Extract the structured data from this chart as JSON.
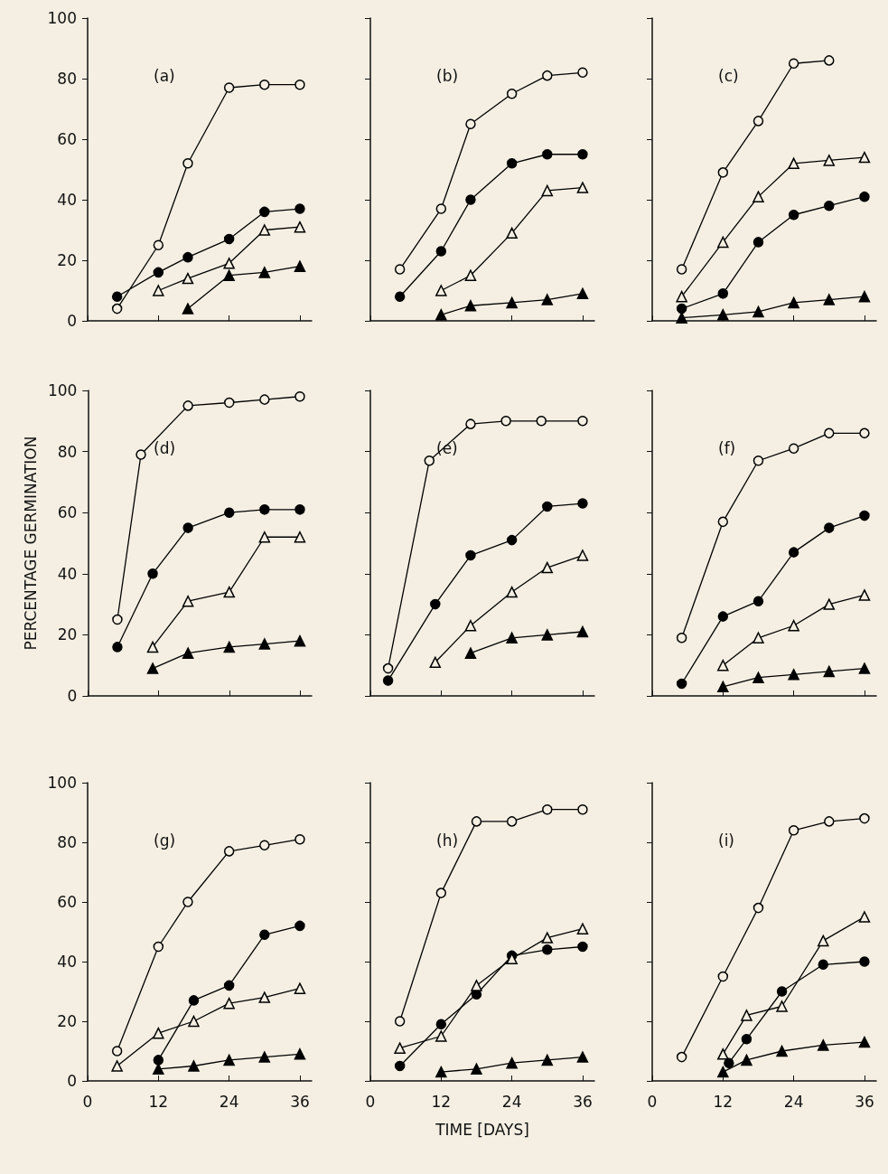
{
  "chart_data": [
    {
      "type": "line",
      "title": "(a)",
      "xlim": [
        0,
        38
      ],
      "xticks": [
        0,
        12,
        24,
        36
      ],
      "ylim": [
        0,
        100
      ],
      "yticks": [
        0,
        20,
        40,
        60,
        80,
        100
      ],
      "tick_labels": "y",
      "line_style": "solid",
      "series": [
        {
          "color": "#000000",
          "marker": "circle-open",
          "x": [
            5,
            12,
            17,
            24,
            30,
            36
          ],
          "values": [
            4,
            25,
            52,
            77,
            78,
            78
          ]
        },
        {
          "color": "#000000",
          "marker": "circle",
          "x": [
            5,
            12,
            17,
            24,
            30,
            36
          ],
          "values": [
            8,
            16,
            21,
            27,
            36,
            37
          ]
        },
        {
          "color": "#000000",
          "marker": "triangle-open",
          "x": [
            12,
            17,
            24,
            30,
            36
          ],
          "values": [
            10,
            14,
            19,
            30,
            31
          ]
        },
        {
          "color": "#000000",
          "marker": "triangle",
          "x": [
            17,
            24,
            30,
            36
          ],
          "values": [
            4,
            15,
            16,
            18
          ]
        }
      ]
    },
    {
      "type": "line",
      "title": "(b)",
      "xlim": [
        0,
        38
      ],
      "xticks": [
        0,
        12,
        24,
        36
      ],
      "ylim": [
        0,
        100
      ],
      "yticks": [
        0,
        20,
        40,
        60,
        80,
        100
      ],
      "tick_labels": false,
      "line_style": "solid",
      "series": [
        {
          "color": "#000000",
          "marker": "circle-open",
          "x": [
            5,
            12,
            17,
            24,
            30,
            36
          ],
          "values": [
            17,
            37,
            65,
            75,
            81,
            82
          ]
        },
        {
          "color": "#000000",
          "marker": "circle",
          "x": [
            5,
            12,
            17,
            24,
            30,
            36
          ],
          "values": [
            8,
            23,
            40,
            52,
            55,
            55
          ]
        },
        {
          "color": "#000000",
          "marker": "triangle-open",
          "x": [
            12,
            17,
            24,
            30,
            36
          ],
          "values": [
            10,
            15,
            29,
            43,
            44
          ]
        },
        {
          "color": "#000000",
          "marker": "triangle",
          "x": [
            12,
            17,
            24,
            30,
            36
          ],
          "values": [
            2,
            5,
            6,
            7,
            9
          ]
        }
      ]
    },
    {
      "type": "line",
      "title": "(c)",
      "xlim": [
        0,
        38
      ],
      "xticks": [
        0,
        12,
        24,
        36
      ],
      "ylim": [
        0,
        100
      ],
      "yticks": [
        0,
        20,
        40,
        60,
        80,
        100
      ],
      "tick_labels": false,
      "line_style": "solid",
      "series": [
        {
          "color": "#000000",
          "marker": "circle-open",
          "x": [
            5,
            12,
            18,
            24,
            30
          ],
          "values": [
            17,
            49,
            66,
            85,
            86
          ]
        },
        {
          "color": "#000000",
          "marker": "circle",
          "x": [
            5,
            12,
            18,
            24,
            30,
            36
          ],
          "values": [
            4,
            9,
            26,
            35,
            38,
            41
          ]
        },
        {
          "color": "#000000",
          "marker": "triangle-open",
          "x": [
            5,
            12,
            18,
            24,
            30,
            36
          ],
          "values": [
            8,
            26,
            41,
            52,
            53,
            54
          ]
        },
        {
          "color": "#000000",
          "marker": "triangle",
          "x": [
            5,
            12,
            18,
            24,
            30,
            36
          ],
          "values": [
            1,
            2,
            3,
            6,
            7,
            8
          ]
        }
      ]
    },
    {
      "type": "line",
      "title": "(d)",
      "ylabel": "PERCENTAGE GERMINATION",
      "xlim": [
        0,
        38
      ],
      "xticks": [
        0,
        12,
        24,
        36
      ],
      "ylim": [
        0,
        100
      ],
      "yticks": [
        0,
        20,
        40,
        60,
        80,
        100
      ],
      "tick_labels": "y",
      "line_style": "solid",
      "series": [
        {
          "color": "#000000",
          "marker": "circle-open",
          "x": [
            5,
            9,
            17,
            24,
            30,
            36
          ],
          "values": [
            25,
            79,
            95,
            96,
            97,
            98
          ]
        },
        {
          "color": "#000000",
          "marker": "circle",
          "x": [
            5,
            11,
            17,
            24,
            30,
            36
          ],
          "values": [
            16,
            40,
            55,
            60,
            61,
            61
          ]
        },
        {
          "color": "#000000",
          "marker": "triangle-open",
          "x": [
            11,
            17,
            24,
            30,
            36
          ],
          "values": [
            16,
            31,
            34,
            52,
            52
          ]
        },
        {
          "color": "#000000",
          "marker": "triangle",
          "x": [
            11,
            17,
            24,
            30,
            36
          ],
          "values": [
            9,
            14,
            16,
            17,
            18
          ]
        }
      ]
    },
    {
      "type": "line",
      "title": "(e)",
      "xlim": [
        0,
        38
      ],
      "xticks": [
        0,
        12,
        24,
        36
      ],
      "ylim": [
        0,
        100
      ],
      "yticks": [
        0,
        20,
        40,
        60,
        80,
        100
      ],
      "tick_labels": false,
      "line_style": "solid",
      "series": [
        {
          "color": "#000000",
          "marker": "circle-open",
          "x": [
            3,
            10,
            17,
            23,
            29,
            36
          ],
          "values": [
            9,
            77,
            89,
            90,
            90,
            90
          ]
        },
        {
          "color": "#000000",
          "marker": "circle",
          "x": [
            3,
            11,
            17,
            24,
            30,
            36
          ],
          "values": [
            5,
            30,
            46,
            51,
            62,
            63
          ]
        },
        {
          "color": "#000000",
          "marker": "triangle-open",
          "x": [
            11,
            17,
            24,
            30,
            36
          ],
          "values": [
            11,
            23,
            34,
            42,
            46
          ]
        },
        {
          "color": "#000000",
          "marker": "triangle",
          "x": [
            17,
            24,
            30,
            36
          ],
          "values": [
            14,
            19,
            20,
            21
          ]
        }
      ]
    },
    {
      "type": "line",
      "title": "(f)",
      "xlim": [
        0,
        38
      ],
      "xticks": [
        0,
        12,
        24,
        36
      ],
      "ylim": [
        0,
        100
      ],
      "yticks": [
        0,
        20,
        40,
        60,
        80,
        100
      ],
      "tick_labels": false,
      "line_style": "solid",
      "series": [
        {
          "color": "#000000",
          "marker": "circle-open",
          "x": [
            5,
            12,
            18,
            24,
            30,
            36
          ],
          "values": [
            19,
            57,
            77,
            81,
            86,
            86
          ]
        },
        {
          "color": "#000000",
          "marker": "circle",
          "x": [
            5,
            12,
            18,
            24,
            30,
            36
          ],
          "values": [
            4,
            26,
            31,
            47,
            55,
            59
          ]
        },
        {
          "color": "#000000",
          "marker": "triangle-open",
          "x": [
            12,
            18,
            24,
            30,
            36
          ],
          "values": [
            10,
            19,
            23,
            30,
            33
          ]
        },
        {
          "color": "#000000",
          "marker": "triangle",
          "x": [
            12,
            18,
            24,
            30,
            36
          ],
          "values": [
            3,
            6,
            7,
            8,
            9
          ]
        }
      ]
    },
    {
      "type": "line",
      "title": "(g)",
      "xlim": [
        0,
        38
      ],
      "xticks": [
        0,
        12,
        24,
        36
      ],
      "ylim": [
        0,
        100
      ],
      "yticks": [
        0,
        20,
        40,
        60,
        80,
        100
      ],
      "line_style": "solid",
      "series": [
        {
          "color": "#000000",
          "marker": "circle-open",
          "x": [
            5,
            12,
            17,
            24,
            30,
            36
          ],
          "values": [
            10,
            45,
            60,
            77,
            79,
            81
          ]
        },
        {
          "color": "#000000",
          "marker": "circle",
          "x": [
            12,
            18,
            24,
            30,
            36
          ],
          "values": [
            7,
            27,
            32,
            49,
            52
          ]
        },
        {
          "color": "#000000",
          "marker": "triangle-open",
          "x": [
            5,
            12,
            18,
            24,
            30,
            36
          ],
          "values": [
            5,
            16,
            20,
            26,
            28,
            31
          ]
        },
        {
          "color": "#000000",
          "marker": "triangle",
          "x": [
            12,
            18,
            24,
            30,
            36
          ],
          "values": [
            4,
            5,
            7,
            8,
            9
          ]
        }
      ]
    },
    {
      "type": "line",
      "title": "(h)",
      "xlabel": "TIME [DAYS]",
      "xlim": [
        0,
        38
      ],
      "xticks": [
        0,
        12,
        24,
        36
      ],
      "ylim": [
        0,
        100
      ],
      "yticks": [
        0,
        20,
        40,
        60,
        80,
        100
      ],
      "tick_labels": "x",
      "line_style": "solid",
      "series": [
        {
          "color": "#000000",
          "marker": "circle-open",
          "x": [
            5,
            12,
            18,
            24,
            30,
            36
          ],
          "values": [
            20,
            63,
            87,
            87,
            91,
            91
          ]
        },
        {
          "color": "#000000",
          "marker": "circle",
          "x": [
            5,
            12,
            18,
            24,
            30,
            36
          ],
          "values": [
            5,
            19,
            29,
            42,
            44,
            45
          ]
        },
        {
          "color": "#000000",
          "marker": "triangle-open",
          "x": [
            5,
            12,
            18,
            24,
            30,
            36
          ],
          "values": [
            11,
            15,
            32,
            41,
            48,
            51
          ]
        },
        {
          "color": "#000000",
          "marker": "triangle",
          "x": [
            12,
            18,
            24,
            30,
            36
          ],
          "values": [
            3,
            4,
            6,
            7,
            8
          ]
        }
      ]
    },
    {
      "type": "line",
      "title": "(i)",
      "xlim": [
        0,
        38
      ],
      "xticks": [
        0,
        12,
        24,
        36
      ],
      "ylim": [
        0,
        100
      ],
      "yticks": [
        0,
        20,
        40,
        60,
        80,
        100
      ],
      "tick_labels": "x",
      "line_style": "solid",
      "series": [
        {
          "color": "#000000",
          "marker": "circle-open",
          "x": [
            5,
            12,
            18,
            24,
            30,
            36
          ],
          "values": [
            8,
            35,
            58,
            84,
            87,
            88
          ]
        },
        {
          "color": "#000000",
          "marker": "circle",
          "x": [
            13,
            16,
            22,
            29,
            36
          ],
          "values": [
            6,
            14,
            30,
            39,
            40
          ]
        },
        {
          "color": "#000000",
          "marker": "triangle-open",
          "x": [
            12,
            16,
            22,
            29,
            36
          ],
          "values": [
            9,
            22,
            25,
            47,
            55
          ]
        },
        {
          "color": "#000000",
          "marker": "triangle",
          "x": [
            12,
            16,
            22,
            29,
            36
          ],
          "values": [
            3,
            7,
            10,
            12,
            13
          ]
        }
      ]
    }
  ]
}
